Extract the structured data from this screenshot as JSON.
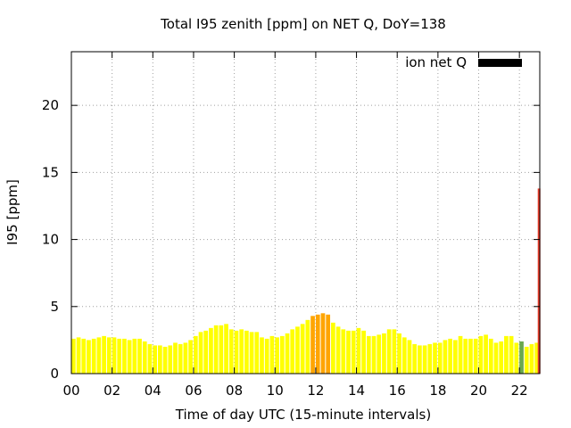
{
  "chart_data": {
    "type": "bar",
    "title": "Total I95 zenith [ppm] on NET Q, DoY=138",
    "xlabel": "Time of day UTC (15-minute intervals)",
    "ylabel": "I95 [ppm]",
    "xlim": [
      0,
      23
    ],
    "ylim": [
      0,
      24
    ],
    "x_ticks": [
      "00",
      "02",
      "04",
      "06",
      "08",
      "10",
      "12",
      "14",
      "16",
      "18",
      "20",
      "22"
    ],
    "y_ticks": [
      "0",
      "5",
      "10",
      "15",
      "20"
    ],
    "grid": true,
    "legend_position": "top-right",
    "series": [
      {
        "name": "ion net Q",
        "legend_color": "#000000",
        "x_start_hours": [
          0.0,
          0.25,
          0.5,
          0.75,
          1.0,
          1.25,
          1.5,
          1.75,
          2.0,
          2.25,
          2.5,
          2.75,
          3.0,
          3.25,
          3.5,
          3.75,
          4.0,
          4.25,
          4.5,
          4.75,
          5.0,
          5.25,
          5.5,
          5.75,
          6.0,
          6.25,
          6.5,
          6.75,
          7.0,
          7.25,
          7.5,
          7.75,
          8.0,
          8.25,
          8.5,
          8.75,
          9.0,
          9.25,
          9.5,
          9.75,
          10.0,
          10.25,
          10.5,
          10.75,
          11.0,
          11.25,
          11.5,
          11.75,
          12.0,
          12.25,
          12.5,
          12.75,
          13.0,
          13.25,
          13.5,
          13.75,
          14.0,
          14.25,
          14.5,
          14.75,
          15.0,
          15.25,
          15.5,
          15.75,
          16.0,
          16.25,
          16.5,
          16.75,
          17.0,
          17.25,
          17.5,
          17.75,
          18.0,
          18.25,
          18.5,
          18.75,
          19.0,
          19.25,
          19.5,
          19.75,
          20.0,
          20.25,
          20.5,
          20.75,
          21.0,
          21.25,
          21.5,
          21.75,
          22.0,
          22.25,
          22.5,
          22.75
        ],
        "values": [
          2.6,
          2.7,
          2.6,
          2.5,
          2.6,
          2.7,
          2.8,
          2.7,
          2.7,
          2.6,
          2.6,
          2.5,
          2.6,
          2.6,
          2.4,
          2.2,
          2.1,
          2.1,
          2.0,
          2.1,
          2.3,
          2.2,
          2.3,
          2.5,
          2.8,
          3.1,
          3.2,
          3.4,
          3.6,
          3.6,
          3.7,
          3.3,
          3.2,
          3.3,
          3.2,
          3.1,
          3.1,
          2.7,
          2.6,
          2.8,
          2.7,
          2.8,
          3.0,
          3.3,
          3.5,
          3.7,
          4.0,
          4.3,
          4.4,
          4.5,
          4.4,
          3.8,
          3.5,
          3.3,
          3.2,
          3.2,
          3.4,
          3.2,
          2.8,
          2.8,
          2.9,
          3.0,
          3.3,
          3.3,
          3.0,
          2.7,
          2.5,
          2.2,
          2.1,
          2.1,
          2.2,
          2.3,
          2.3,
          2.5,
          2.6,
          2.5,
          2.8,
          2.6,
          2.6,
          2.6,
          2.8,
          2.9,
          2.6,
          2.3,
          2.4,
          2.8,
          2.8,
          2.3,
          2.4,
          2.0,
          2.2,
          2.3
        ],
        "last_bar": {
          "x_start_hours": 23.0,
          "value": 13.8
        }
      }
    ],
    "colors": {
      "low": "#ffff00",
      "mid": "#ffa500",
      "green": "#6aa84f",
      "red": "#e53c2b"
    }
  }
}
